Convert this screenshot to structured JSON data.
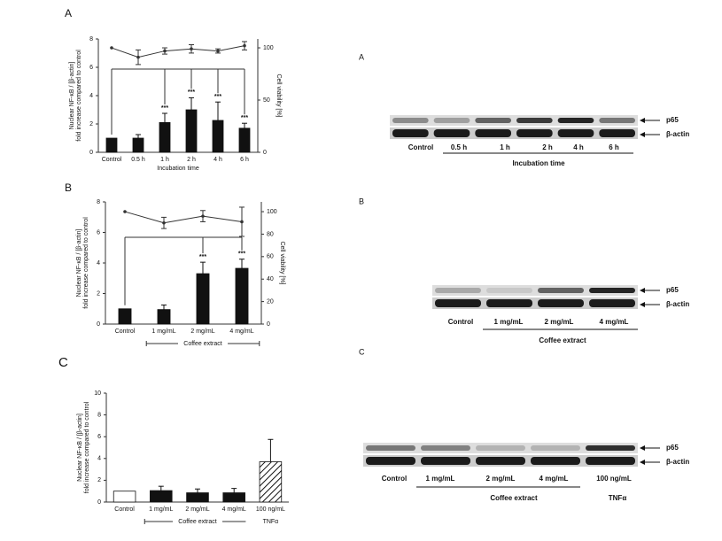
{
  "chart_data": [
    {
      "type": "bar",
      "panel": "A",
      "categories": [
        "Control",
        "0.5 h",
        "1 h",
        "2 h",
        "4 h",
        "6 h"
      ],
      "series": [
        {
          "color": "#111111",
          "values": [
            1,
            1,
            2.1,
            3.0,
            2.25,
            1.7
          ],
          "errors": [
            0,
            0.25,
            0.65,
            0.85,
            1.3,
            0.35
          ]
        },
        {
          "type": "line",
          "axis": "y2",
          "color": "#333333",
          "values": [
            100,
            91,
            97,
            99,
            97,
            102
          ],
          "errors": [
            0,
            7,
            3,
            4,
            2,
            4
          ]
        }
      ],
      "annotations": [
        null,
        null,
        "***",
        "***",
        "***",
        "***"
      ],
      "ylabel": [
        "Nuclear NF-κB / [β-actin]",
        "fold increase compared to control"
      ],
      "y2label": "Cell viability [%]",
      "xlabel": "Incubation time",
      "ylim": [
        0,
        8
      ],
      "yticks": [
        0,
        2,
        4,
        6,
        8
      ],
      "y2lim": [
        0,
        108.5
      ],
      "y2ticks": [
        0,
        50,
        100
      ]
    },
    {
      "type": "bar",
      "panel": "B",
      "categories": [
        "Control",
        "1 mg/mL",
        "2 mg/mL",
        "4 mg/mL"
      ],
      "series": [
        {
          "color": "#111111",
          "values": [
            1,
            0.95,
            3.3,
            3.65
          ],
          "errors": [
            0,
            0.3,
            0.75,
            0.6
          ]
        },
        {
          "type": "line",
          "axis": "y2",
          "color": "#333333",
          "values": [
            100,
            90,
            96,
            91
          ],
          "errors": [
            0,
            5,
            5,
            13
          ]
        }
      ],
      "annotations": [
        null,
        null,
        "***",
        "***"
      ],
      "ylabel": [
        "Nuclear NF-κB / [β-actin]",
        "fold increase compared to control"
      ],
      "y2label": "Cell viability [%]",
      "groups": [
        {
          "label": "Coffee extract",
          "from": 1,
          "to": 3
        }
      ],
      "ylim": [
        0,
        8
      ],
      "yticks": [
        0,
        2,
        4,
        6,
        8
      ],
      "y2lim": [
        0,
        108.7
      ],
      "y2ticks": [
        0,
        20,
        40,
        60,
        80,
        100
      ]
    },
    {
      "type": "bar",
      "panel": "C",
      "categories": [
        "Control",
        "1 mg/mL",
        "2 mg/mL",
        "4 mg/mL",
        "100 ng/mL"
      ],
      "series": [
        {
          "fills": [
            "#ffffff",
            "#111111",
            "#111111",
            "#111111",
            "hatch"
          ],
          "values": [
            1,
            1.05,
            0.85,
            0.85,
            3.7
          ],
          "errors": [
            0,
            0.4,
            0.35,
            0.4,
            2.05
          ]
        }
      ],
      "ylabel": [
        "Nuclear NF-κB / [β-actin]",
        "fold increase compared to control"
      ],
      "groups": [
        {
          "label": "Coffee extract",
          "from": 1,
          "to": 3
        },
        {
          "label": "TNFα",
          "from": 4,
          "to": 4
        }
      ],
      "ylim": [
        0,
        10
      ],
      "yticks": [
        0,
        2,
        4,
        6,
        8,
        10
      ]
    }
  ],
  "blots": [
    {
      "panel": "A",
      "lanes": [
        "Control",
        "0.5 h",
        "1 h",
        "2 h",
        "4 h",
        "6 h"
      ],
      "group": "Incubation time",
      "markers": [
        "p65",
        "β-actin"
      ]
    },
    {
      "panel": "B",
      "lanes": [
        "Control",
        "1 mg/mL",
        "2 mg/mL",
        "4 mg/mL"
      ],
      "group": "Coffee extract",
      "markers": [
        "p65",
        "β-actin"
      ]
    },
    {
      "panel": "C",
      "lanes": [
        "Control",
        "1 mg/mL",
        "2 mg/mL",
        "4 mg/mL",
        "100 ng/mL"
      ],
      "group": "Coffee extract",
      "extra": "TNFα",
      "markers": [
        "p65",
        "β-actin"
      ]
    }
  ]
}
